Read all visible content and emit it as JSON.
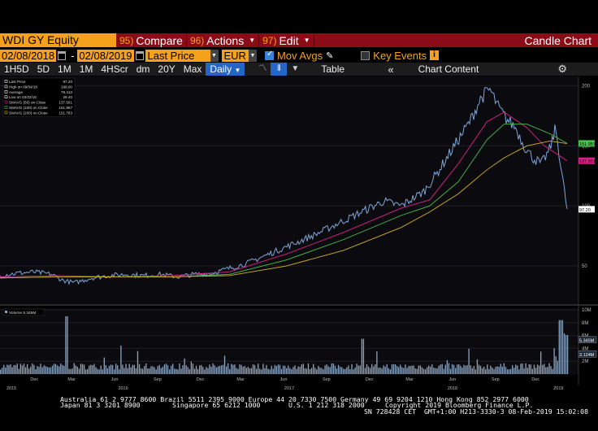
{
  "header": {
    "ticker": "WDI GY Equity",
    "menus": [
      {
        "code": "95)",
        "label": "Compare",
        "caret": false
      },
      {
        "code": "96)",
        "label": "Actions",
        "caret": true
      },
      {
        "code": "97)",
        "label": "Edit",
        "caret": true
      }
    ],
    "chart_type": "Candle Chart"
  },
  "controls": {
    "start_date": "02/08/2018",
    "end_date": "02/08/2019",
    "field": "Last Price",
    "currency": "EUR",
    "mov_avgs_label": "Mov Avgs",
    "key_events_label": "Key Events"
  },
  "periods": {
    "items": [
      "1H5D",
      "5D",
      "1M",
      "1M",
      "4HScr",
      "dm",
      "20Y",
      "Max"
    ],
    "active": "Daily",
    "table_label": "Table",
    "chart_content_label": "Chart Content"
  },
  "legend": {
    "rows": [
      {
        "label": "Last Price",
        "value": "97.20",
        "color": "#ffffff"
      },
      {
        "label": "High on 09/04/18",
        "value": "199.00",
        "color": "#ffffff"
      },
      {
        "label": "Average",
        "value": "79.413",
        "color": "#ffffff"
      },
      {
        "label": "Low on 03/22/16",
        "value": "29.40",
        "color": "#ffffff"
      },
      {
        "label": "SMAVG (50) on Close",
        "value": "137.561",
        "color": "#e0208a"
      },
      {
        "label": "SMAVG (100) on Close",
        "value": "151.957",
        "color": "#46c34b"
      },
      {
        "label": "SMAVG (200) on Close",
        "value": "151.783",
        "color": "#d6b21e"
      }
    ]
  },
  "volume_legend": "Volume 5.345M",
  "colors": {
    "price": "#7ea6d8",
    "sma50": "#e0208a",
    "sma100": "#46c34b",
    "sma200": "#d6b21e",
    "volume": "#8ea5c0",
    "accent": "#f5a11c",
    "titlebar": "#8b0c16"
  },
  "chart_data": {
    "type": "line",
    "price_axis": {
      "ylim": [
        25,
        205
      ],
      "ticks": [
        {
          "v": 200,
          "label": "200"
        },
        {
          "v": 150,
          "label": "150"
        },
        {
          "v": 100,
          "label": "100"
        },
        {
          "v": 50,
          "label": "50"
        }
      ]
    },
    "last_price_tags": [
      {
        "value": 151.957,
        "label": "151.957",
        "color": "#46c34b"
      },
      {
        "value": 137.561,
        "label": "137.561",
        "color": "#e0208a"
      },
      {
        "value": 97.2,
        "label": "97.20",
        "color": "#ffffff"
      }
    ],
    "volume_axis": {
      "ylim": [
        0,
        10
      ],
      "unit": "M",
      "ticks": [
        {
          "v": 10,
          "label": "10M"
        },
        {
          "v": 8,
          "label": "8M"
        },
        {
          "v": 6,
          "label": "6M"
        },
        {
          "v": 4,
          "label": "4M"
        },
        {
          "v": 2,
          "label": "2M"
        }
      ]
    },
    "volume_tags": [
      {
        "value": 5.345,
        "label": "5.345M",
        "color": "#ffffff"
      },
      {
        "value": 3.124,
        "label": "3.124M",
        "color": "#ffffff"
      }
    ],
    "x_months": [
      {
        "t": 0.06,
        "label": "Dec"
      },
      {
        "t": 0.125,
        "label": "Mar"
      },
      {
        "t": 0.2,
        "label": "Jun"
      },
      {
        "t": 0.275,
        "label": "Sep"
      },
      {
        "t": 0.35,
        "label": "Dec"
      },
      {
        "t": 0.42,
        "label": "Mar"
      },
      {
        "t": 0.495,
        "label": "Jun"
      },
      {
        "t": 0.57,
        "label": "Sep"
      },
      {
        "t": 0.645,
        "label": "Dec"
      },
      {
        "t": 0.715,
        "label": "Mar"
      },
      {
        "t": 0.79,
        "label": "Jun"
      },
      {
        "t": 0.865,
        "label": "Sep"
      },
      {
        "t": 0.935,
        "label": "Dec"
      }
    ],
    "x_years": [
      {
        "t": 0.02,
        "label": "2015"
      },
      {
        "t": 0.215,
        "label": "2016"
      },
      {
        "t": 0.505,
        "label": "2017"
      },
      {
        "t": 0.79,
        "label": "2018"
      },
      {
        "t": 0.975,
        "label": "2019"
      }
    ],
    "series": [
      {
        "name": "Last Price",
        "t": [
          0,
          0.03,
          0.06,
          0.09,
          0.11,
          0.13,
          0.16,
          0.19,
          0.22,
          0.25,
          0.28,
          0.31,
          0.34,
          0.37,
          0.4,
          0.43,
          0.46,
          0.49,
          0.52,
          0.55,
          0.58,
          0.61,
          0.64,
          0.67,
          0.7,
          0.72,
          0.74,
          0.76,
          0.78,
          0.8,
          0.82,
          0.84,
          0.855,
          0.87,
          0.885,
          0.9,
          0.915,
          0.93,
          0.945,
          0.96,
          0.97,
          0.98,
          0.99
        ],
        "values": [
          42,
          44,
          45,
          43,
          38,
          36,
          40,
          42,
          43,
          42,
          43,
          41,
          43,
          44,
          48,
          52,
          58,
          64,
          70,
          76,
          83,
          90,
          97,
          104,
          100,
          106,
          112,
          125,
          140,
          155,
          170,
          190,
          197,
          182,
          172,
          165,
          150,
          140,
          135,
          147,
          165,
          130,
          97
        ]
      },
      {
        "name": "SMAVG (50)",
        "t": [
          0,
          0.1,
          0.2,
          0.3,
          0.4,
          0.5,
          0.6,
          0.7,
          0.75,
          0.8,
          0.85,
          0.88,
          0.92,
          0.95,
          0.99
        ],
        "values": [
          41,
          42,
          41,
          42,
          45,
          60,
          78,
          98,
          105,
          135,
          170,
          178,
          165,
          150,
          137.561
        ]
      },
      {
        "name": "SMAVG (100)",
        "t": [
          0,
          0.1,
          0.2,
          0.3,
          0.4,
          0.5,
          0.6,
          0.7,
          0.75,
          0.8,
          0.85,
          0.88,
          0.92,
          0.96,
          0.99
        ],
        "values": [
          40,
          41,
          41,
          41,
          43,
          55,
          72,
          92,
          100,
          120,
          155,
          168,
          168,
          160,
          151.957
        ]
      },
      {
        "name": "SMAVG (200)",
        "t": [
          0,
          0.1,
          0.2,
          0.3,
          0.4,
          0.5,
          0.6,
          0.7,
          0.75,
          0.8,
          0.85,
          0.88,
          0.92,
          0.96,
          0.99
        ],
        "values": [
          40,
          41,
          41,
          41,
          42,
          50,
          63,
          82,
          95,
          110,
          130,
          140,
          150,
          154,
          151.783
        ]
      }
    ]
  },
  "footer": {
    "line1": "Australia 61 2 9777 8600 Brazil 5511 2395 9000 Europe 44 20 7330 7500 Germany 49 69 9204 1210 Hong Kong 852 2977 6000",
    "line2a": "Japan 81 3 3201 8900        Singapore 65 6212 1000       U.S. 1 212 318 2000",
    "line2b": "Copyright 2019 Bloomberg Finance L.P.",
    "line3": "SN 728428 CET  GMT+1:00 H213-3330-3 08-Feb-2019 15:02:08"
  }
}
